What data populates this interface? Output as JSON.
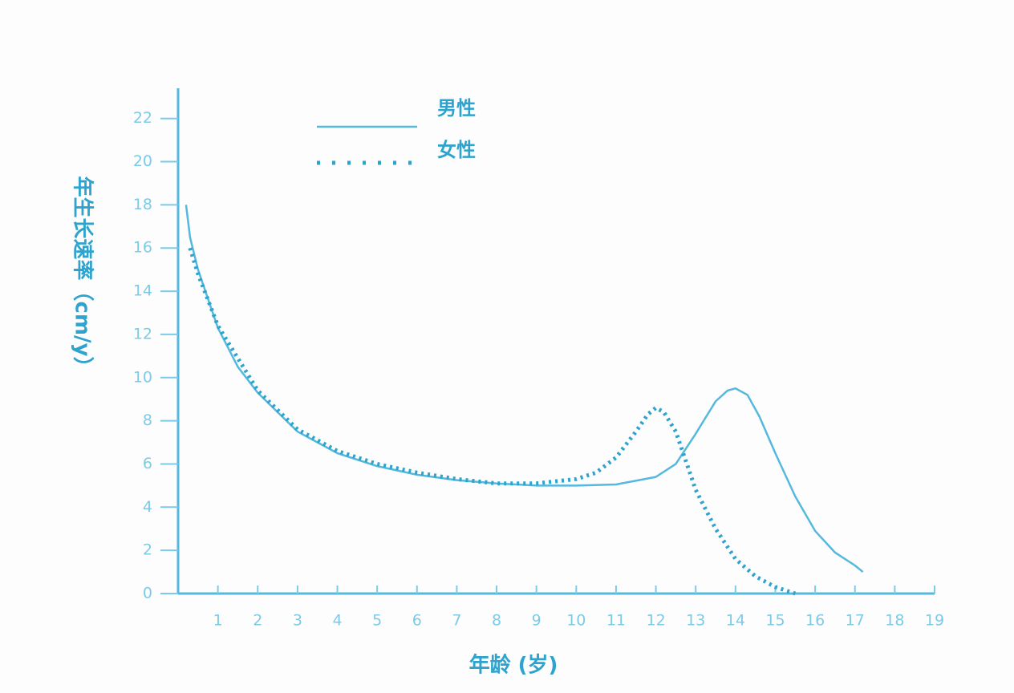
{
  "chart_data": {
    "type": "line",
    "y_label": "年生长速率（cm/y）",
    "x_label": "年龄 (岁)",
    "xlim": [
      0,
      19
    ],
    "xticks": [
      1,
      2,
      3,
      4,
      5,
      6,
      7,
      8,
      9,
      10,
      11,
      12,
      13,
      14,
      15,
      16,
      17,
      18,
      19
    ],
    "ylim": [
      0,
      23.4
    ],
    "yticks": [
      0,
      2,
      4,
      6,
      8,
      10,
      12,
      14,
      16,
      18,
      20,
      22
    ],
    "series": [
      {
        "name": "男性",
        "color": "#55b8dd",
        "line_style": "solid",
        "x": [
          0.2,
          0.3,
          0.5,
          1,
          1.5,
          2,
          3,
          4,
          5,
          6,
          7,
          8,
          9,
          10,
          11,
          12,
          12.5,
          13,
          13.5,
          13.8,
          14,
          14.3,
          14.6,
          15,
          15.5,
          16,
          16.5,
          17,
          17.2
        ],
        "values": [
          18,
          16.5,
          15,
          12.3,
          10.5,
          9.3,
          7.5,
          6.5,
          5.9,
          5.5,
          5.25,
          5.1,
          5.0,
          5.0,
          5.05,
          5.4,
          6.0,
          7.4,
          8.9,
          9.4,
          9.5,
          9.2,
          8.2,
          6.5,
          4.5,
          2.9,
          1.9,
          1.3,
          1.0
        ]
      },
      {
        "name": "女性",
        "color": "#2ea3cd",
        "line_style": "dotted",
        "x": [
          0.3,
          0.5,
          1,
          2,
          3,
          4,
          5,
          6,
          7,
          8,
          9,
          10,
          10.5,
          11,
          11.5,
          11.8,
          12,
          12.2,
          12.5,
          13,
          13.5,
          14,
          14.5,
          15,
          15.5
        ],
        "values": [
          16,
          14.8,
          12.4,
          9.4,
          7.6,
          6.6,
          6.0,
          5.6,
          5.3,
          5.1,
          5.1,
          5.3,
          5.6,
          6.3,
          7.5,
          8.3,
          8.6,
          8.4,
          7.5,
          4.8,
          3.0,
          1.6,
          0.8,
          0.3,
          0
        ]
      }
    ],
    "legend": "upper-left"
  }
}
